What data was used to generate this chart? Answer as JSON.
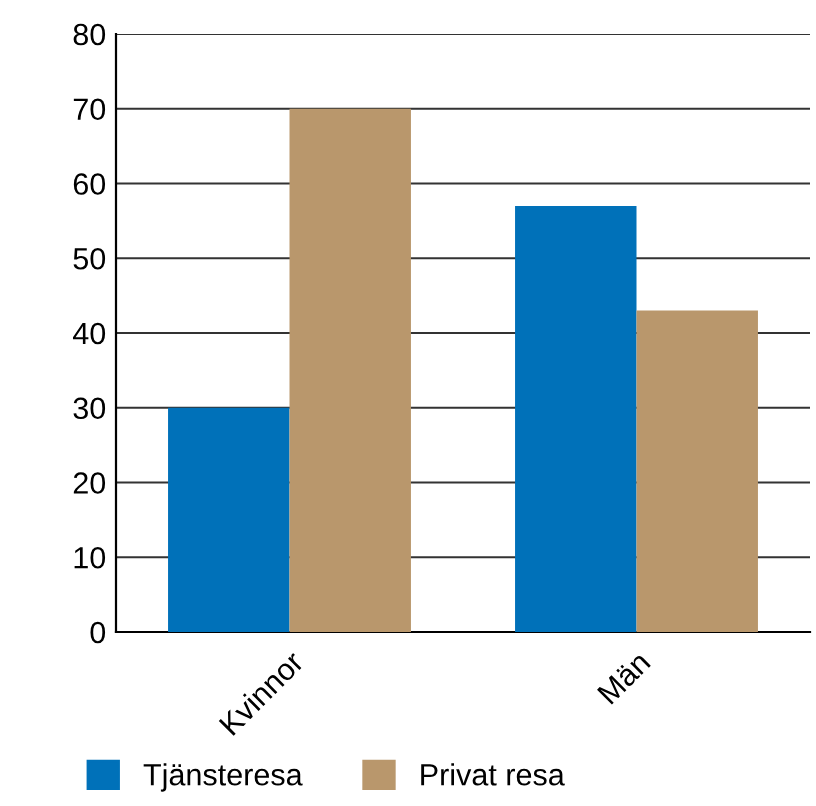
{
  "chart_data": {
    "type": "bar",
    "categories": [
      "Kvinnor",
      "Män"
    ],
    "series": [
      {
        "name": "Tjänsteresa",
        "color": "#0071b9",
        "values": [
          30,
          57
        ]
      },
      {
        "name": "Privat resa",
        "color": "#b9976c",
        "values": [
          70,
          43
        ]
      }
    ],
    "ylim": [
      0,
      80
    ],
    "yticks": [
      0,
      10,
      20,
      30,
      40,
      50,
      60,
      70,
      80
    ],
    "grid": "y",
    "legend": "bottom"
  }
}
